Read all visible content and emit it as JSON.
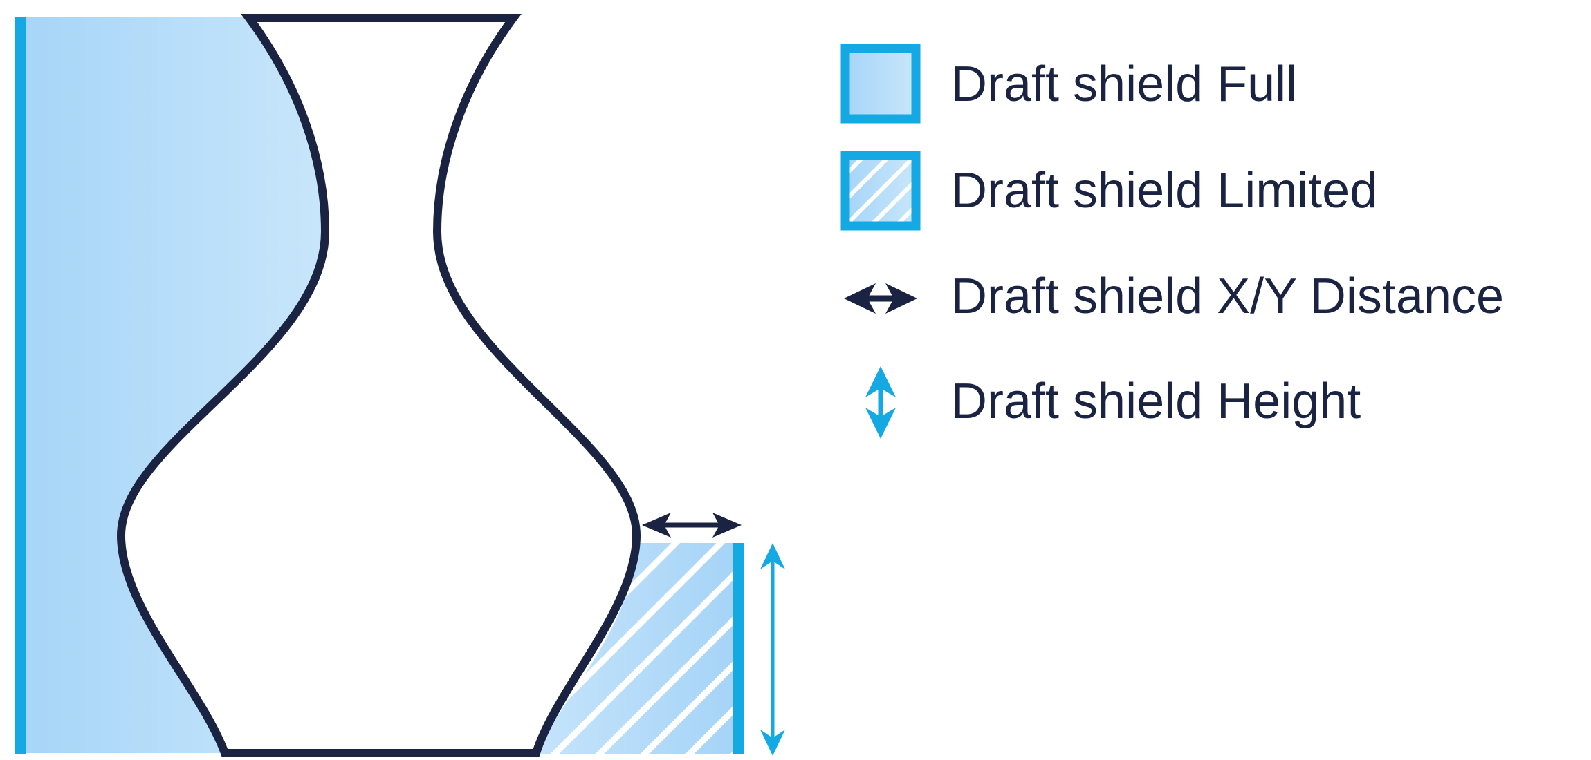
{
  "legend": {
    "items": [
      {
        "label": "Draft shield Full",
        "icon": "full-shield-swatch-icon"
      },
      {
        "label": "Draft shield Limited",
        "icon": "limited-shield-hatched-swatch-icon"
      },
      {
        "label": "Draft shield X/Y Distance",
        "icon": "horizontal-double-arrow-icon"
      },
      {
        "label": "Draft shield Height",
        "icon": "vertical-double-arrow-icon"
      }
    ]
  },
  "colors": {
    "accent_blue": "#14a9e3",
    "outline_navy": "#1a2442",
    "fill_light_blue": "#c2e3fa",
    "fill_mid_blue": "#a9d7f8",
    "background": "#ffffff"
  }
}
